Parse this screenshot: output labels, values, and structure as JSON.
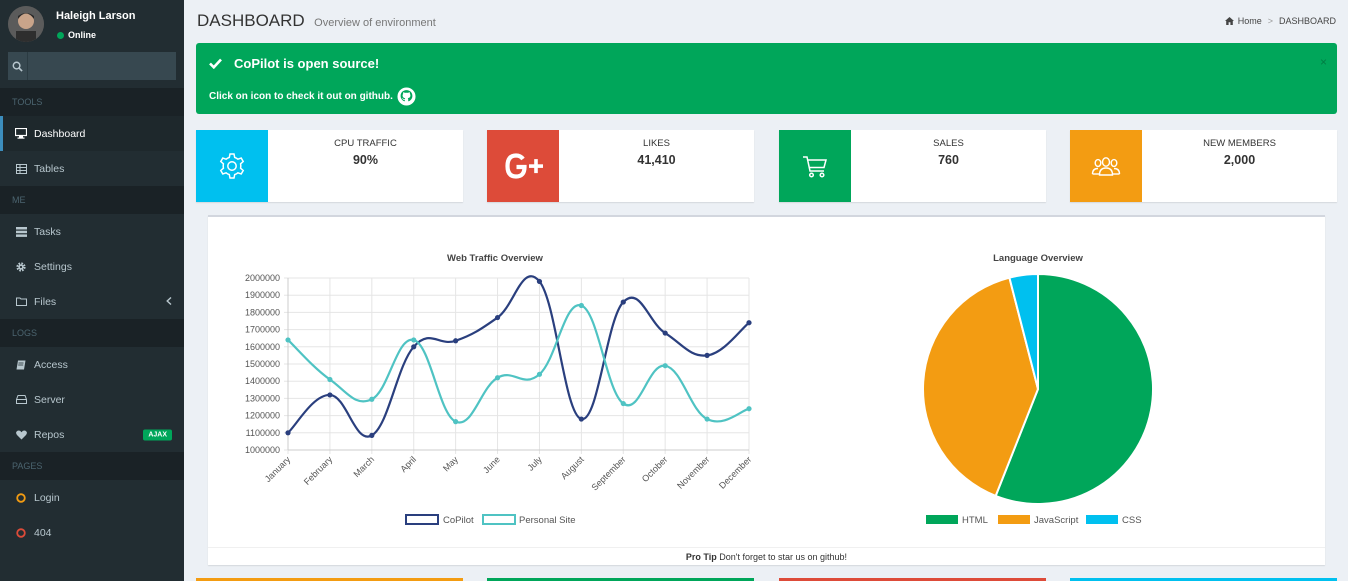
{
  "user": {
    "name": "Haleigh Larson",
    "status": "Online"
  },
  "search": {
    "placeholder": ""
  },
  "menu": {
    "tools_header": "TOOLS",
    "me_header": "ME",
    "logs_header": "LOGS",
    "pages_header": "PAGES",
    "dashboard": "Dashboard",
    "tables": "Tables",
    "tasks": "Tasks",
    "settings": "Settings",
    "files": "Files",
    "access": "Access",
    "server": "Server",
    "repos": "Repos",
    "repos_badge": "AJAX",
    "login": "Login",
    "not_found": "404"
  },
  "header": {
    "title": "DASHBOARD",
    "subtitle": "Overview of environment"
  },
  "breadcrumb": {
    "home": "Home",
    "current": "DASHBOARD"
  },
  "alert": {
    "title": "CoPilot is open source!",
    "text": "Click on icon to check it out on github.",
    "close": "×"
  },
  "info_boxes": [
    {
      "label": "CPU TRAFFIC",
      "value": "90%",
      "color": "#00c0ef",
      "icon": "gear-icon"
    },
    {
      "label": "LIKES",
      "value": "41,410",
      "color": "#dd4b39",
      "icon": "google-plus-icon"
    },
    {
      "label": "SALES",
      "value": "760",
      "color": "#00a65a",
      "icon": "cart-icon"
    },
    {
      "label": "NEW MEMBERS",
      "value": "2,000",
      "color": "#f39c12",
      "icon": "users-icon"
    }
  ],
  "footer": {
    "pro_tip_label": "Pro Tip",
    "pro_tip_text": " Don't forget to star us on github!"
  },
  "chart_data": [
    {
      "type": "line",
      "title": "Web Traffic Overview",
      "categories": [
        "January",
        "February",
        "March",
        "April",
        "May",
        "June",
        "July",
        "August",
        "September",
        "October",
        "November",
        "December"
      ],
      "series": [
        {
          "name": "CoPilot",
          "color": "#2a3f7e",
          "values": [
            1100000,
            1320000,
            1085000,
            1600000,
            1635000,
            1770000,
            1980000,
            1180000,
            1860000,
            1680000,
            1550000,
            1740000
          ]
        },
        {
          "name": "Personal Site",
          "color": "#4fc3c3",
          "values": [
            1640000,
            1410000,
            1295000,
            1640000,
            1165000,
            1420000,
            1440000,
            1840000,
            1270000,
            1490000,
            1180000,
            1240000
          ]
        }
      ],
      "yticks": [
        "2000000",
        "1900000",
        "1800000",
        "1700000",
        "1600000",
        "1500000",
        "1400000",
        "1300000",
        "1200000",
        "1100000",
        "1000000"
      ],
      "ylim": [
        1000000,
        2000000
      ],
      "grid": true,
      "legend": "bottom"
    },
    {
      "type": "pie",
      "title": "Language Overview",
      "labels": [
        "HTML",
        "JavaScript",
        "CSS"
      ],
      "values": [
        56,
        40,
        4
      ],
      "colors": [
        "#00a65a",
        "#f39c12",
        "#00c0ef"
      ],
      "legend": "bottom"
    }
  ]
}
